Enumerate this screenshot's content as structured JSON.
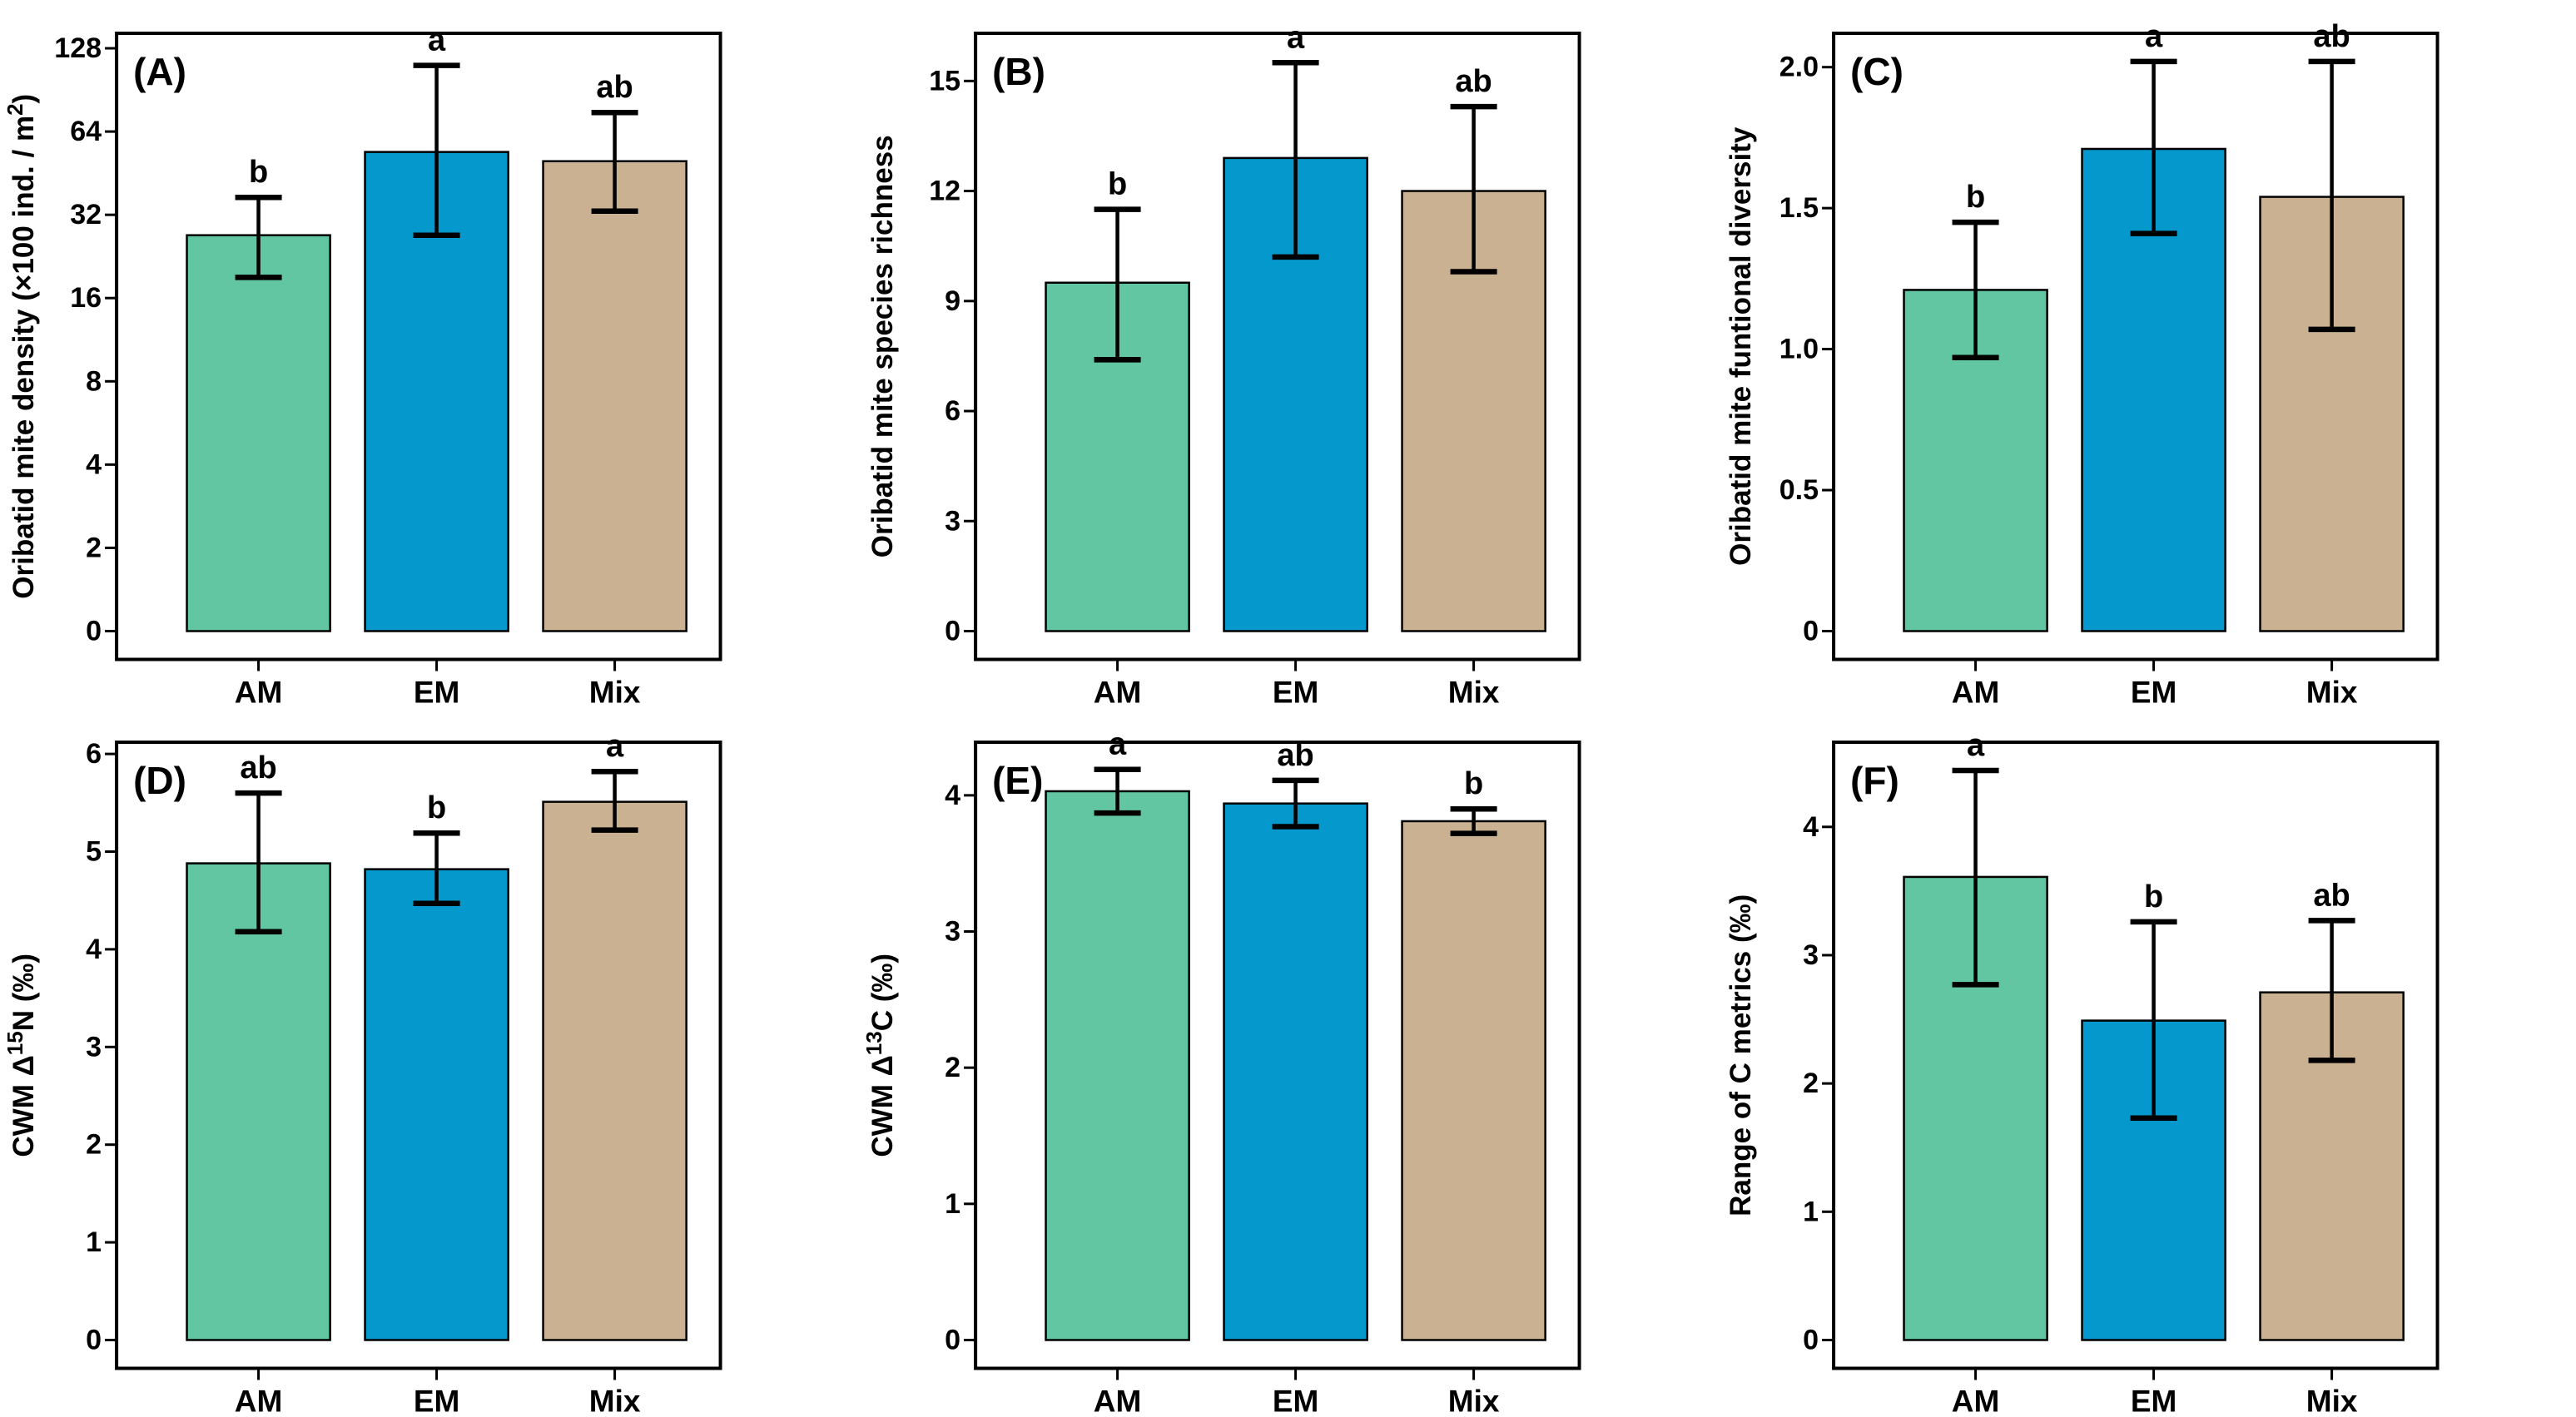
{
  "figure": {
    "background": "#ffffff",
    "bar_fill_colors": [
      "#62C6A2",
      "#0598CD",
      "#C9B192"
    ],
    "bar_stroke_color": "#000000",
    "axis_color": "#000000",
    "categories": [
      "AM",
      "EM",
      "Mix"
    ]
  },
  "chart_data": [
    {
      "type": "bar",
      "panel_letter": "(A)",
      "ylabel": "Oribatid mite density (×100 ind. / m2)",
      "ylabel_segments": [
        {
          "text": "Oribatid mite density (×100 ind. / m"
        },
        {
          "text": "2",
          "sup": true
        },
        {
          "text": ")"
        }
      ],
      "scale": "log2",
      "categories": [
        "AM",
        "EM",
        "Mix"
      ],
      "values": [
        27,
        54,
        50
      ],
      "error_low": [
        19,
        27,
        33
      ],
      "error_high": [
        37,
        111,
        75
      ],
      "sig_letters": [
        "b",
        "a",
        "ab"
      ],
      "yticks": [
        0,
        2,
        4,
        8,
        16,
        32,
        64,
        128
      ],
      "ytick_labels": [
        "0",
        "2",
        "4",
        "8",
        "16",
        "32",
        "64",
        "128"
      ],
      "frame_top": 7.18,
      "legend": "none",
      "grid": "off"
    },
    {
      "type": "bar",
      "panel_letter": "(B)",
      "ylabel": "Oribatid mite species richness",
      "ylabel_segments": [
        {
          "text": "Oribatid mite species richness"
        }
      ],
      "scale": "linear",
      "categories": [
        "AM",
        "EM",
        "Mix"
      ],
      "values": [
        9.5,
        12.9,
        12.0
      ],
      "error_low": [
        7.4,
        10.2,
        9.8
      ],
      "error_high": [
        11.5,
        15.5,
        14.3
      ],
      "sig_letters": [
        "b",
        "a",
        "ab"
      ],
      "yticks": [
        0,
        3,
        6,
        9,
        12,
        15
      ],
      "ytick_labels": [
        "0",
        "3",
        "6",
        "9",
        "12",
        "15"
      ],
      "frame_top": 16.3,
      "legend": "none",
      "grid": "off"
    },
    {
      "type": "bar",
      "panel_letter": "(C)",
      "ylabel": "Oribatid mite funtional diversity",
      "ylabel_segments": [
        {
          "text": "Oribatid mite funtional diversity"
        }
      ],
      "scale": "linear",
      "categories": [
        "AM",
        "EM",
        "Mix"
      ],
      "values": [
        1.21,
        1.71,
        1.54
      ],
      "error_low": [
        0.97,
        1.41,
        1.07
      ],
      "error_high": [
        1.45,
        2.02,
        2.02
      ],
      "sig_letters": [
        "b",
        "a",
        "ab"
      ],
      "yticks": [
        0,
        0.5,
        1.0,
        1.5,
        2.0
      ],
      "ytick_labels": [
        "0",
        "0.5",
        "1.0",
        "1.5",
        "2.0"
      ],
      "frame_top": 2.12,
      "legend": "none",
      "grid": "off"
    },
    {
      "type": "bar",
      "panel_letter": "(D)",
      "ylabel": "CWM Δ15N (‰)",
      "ylabel_segments": [
        {
          "text": "CWM Δ"
        },
        {
          "text": "15",
          "sup": true
        },
        {
          "text": "N (‰)"
        }
      ],
      "scale": "linear",
      "categories": [
        "AM",
        "EM",
        "Mix"
      ],
      "values": [
        4.88,
        4.82,
        5.51
      ],
      "error_low": [
        4.18,
        4.47,
        5.22
      ],
      "error_high": [
        5.6,
        5.19,
        5.82
      ],
      "sig_letters": [
        "ab",
        "b",
        "a"
      ],
      "yticks": [
        0,
        1,
        2,
        3,
        4,
        5,
        6
      ],
      "ytick_labels": [
        "0",
        "1",
        "2",
        "3",
        "4",
        "5",
        "6"
      ],
      "frame_top": 6.12,
      "legend": "none",
      "grid": "off"
    },
    {
      "type": "bar",
      "panel_letter": "(E)",
      "ylabel": "CWM Δ13C (‰)",
      "ylabel_segments": [
        {
          "text": "CWM Δ"
        },
        {
          "text": "13",
          "sup": true
        },
        {
          "text": "C (‰)"
        }
      ],
      "scale": "linear",
      "categories": [
        "AM",
        "EM",
        "Mix"
      ],
      "values": [
        4.03,
        3.94,
        3.81
      ],
      "error_low": [
        3.87,
        3.77,
        3.72
      ],
      "error_high": [
        4.19,
        4.11,
        3.9
      ],
      "sig_letters": [
        "a",
        "ab",
        "b"
      ],
      "yticks": [
        0,
        1,
        2,
        3,
        4
      ],
      "ytick_labels": [
        "0",
        "1",
        "2",
        "3",
        "4"
      ],
      "frame_top": 4.39,
      "legend": "none",
      "grid": "off"
    },
    {
      "type": "bar",
      "panel_letter": "(F)",
      "ylabel": "Range of C metrics (‰)",
      "ylabel_segments": [
        {
          "text": "Range of C metrics (‰)"
        }
      ],
      "scale": "linear",
      "categories": [
        "AM",
        "EM",
        "Mix"
      ],
      "values": [
        3.61,
        2.49,
        2.71
      ],
      "error_low": [
        2.77,
        1.73,
        2.18
      ],
      "error_high": [
        4.44,
        3.26,
        3.27
      ],
      "sig_letters": [
        "a",
        "b",
        "ab"
      ],
      "yticks": [
        0,
        1,
        2,
        3,
        4
      ],
      "ytick_labels": [
        "0",
        "1",
        "2",
        "3",
        "4"
      ],
      "frame_top": 4.66,
      "legend": "none",
      "grid": "off"
    }
  ]
}
